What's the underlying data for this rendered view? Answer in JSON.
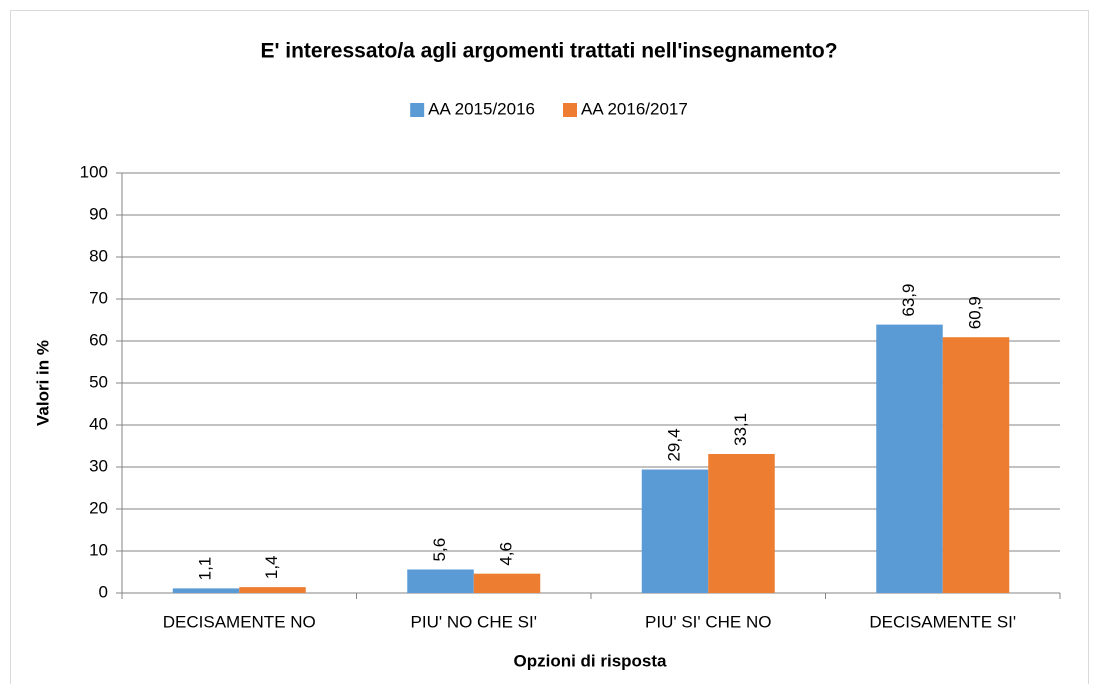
{
  "chart_data": {
    "type": "bar",
    "title": "E' interessato/a agli argomenti trattati nell'insegnamento?",
    "x_label": "Opzioni di risposta",
    "y_label": "Valori in %",
    "categories": [
      "DECISAMENTE NO",
      "PIU' NO CHE SI'",
      "PIU' SI' CHE NO",
      "DECISAMENTE SI'"
    ],
    "series": [
      {
        "name": "AA 2015/2016",
        "color": "#5b9bd5",
        "values": [
          1.1,
          5.6,
          29.4,
          63.9
        ],
        "value_labels": [
          "1,1",
          "5,6",
          "29,4",
          "63,9"
        ]
      },
      {
        "name": "AA 2016/2017",
        "color": "#ed7d31",
        "values": [
          1.4,
          4.6,
          33.1,
          60.9
        ],
        "value_labels": [
          "1,4",
          "4,6",
          "33,1",
          "60,9"
        ]
      }
    ],
    "ylim": [
      0,
      100
    ],
    "yticks": [
      0,
      10,
      20,
      30,
      40,
      50,
      60,
      70,
      80,
      90,
      100
    ],
    "grid": true,
    "legend": "top"
  }
}
